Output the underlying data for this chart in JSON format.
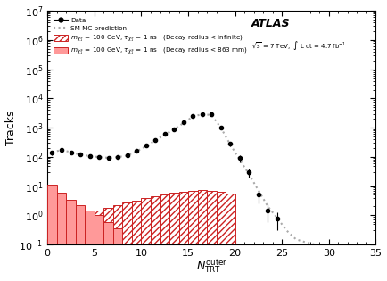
{
  "title_atlas": "ATLAS",
  "subtitle": "$\\sqrt{s}$ = 7 TeV,  $\\int$ L dt = 4.7 fb$^{-1}$",
  "xlabel": "$N_{\\mathrm{TRT}}^{\\mathrm{outer}}$",
  "ylabel": "Tracks",
  "xlim": [
    0,
    35
  ],
  "ylim": [
    0.1,
    10000000.0
  ],
  "data_x": [
    0,
    1,
    2,
    3,
    4,
    5,
    6,
    7,
    8,
    9,
    10,
    11,
    12,
    13,
    14,
    15,
    16,
    17,
    18,
    19,
    20,
    21,
    22,
    23,
    24
  ],
  "data_y": [
    140,
    170,
    140,
    120,
    110,
    100,
    95,
    100,
    115,
    160,
    240,
    380,
    600,
    900,
    1500,
    2500,
    3000,
    2800,
    1000,
    280,
    90,
    30,
    5,
    1.5,
    0.8
  ],
  "data_yerr_low": [
    25,
    22,
    18,
    15,
    13,
    12,
    10,
    12,
    15,
    20,
    30,
    40,
    55,
    80,
    100,
    150,
    170,
    160,
    100,
    50,
    25,
    10,
    2.5,
    0.9,
    0.5
  ],
  "data_yerr_high": [
    25,
    22,
    18,
    15,
    13,
    12,
    10,
    12,
    15,
    20,
    30,
    40,
    55,
    80,
    100,
    150,
    170,
    160,
    100,
    50,
    25,
    10,
    2.5,
    0.9,
    0.5
  ],
  "mc_x": [
    0,
    1,
    2,
    3,
    4,
    5,
    6,
    7,
    8,
    9,
    10,
    11,
    12,
    13,
    14,
    15,
    16,
    17,
    18,
    19,
    20,
    21,
    22,
    23,
    24,
    25,
    26,
    27,
    28
  ],
  "mc_y": [
    145,
    172,
    145,
    118,
    108,
    98,
    93,
    98,
    112,
    155,
    230,
    370,
    580,
    870,
    1450,
    2400,
    2900,
    2700,
    980,
    260,
    80,
    25,
    7,
    2,
    0.8,
    0.3,
    0.15,
    0.12,
    0.1
  ],
  "sig_inf_x": [
    4,
    5,
    6,
    7,
    8,
    9,
    10,
    11,
    12,
    13,
    14,
    15,
    16,
    17,
    18,
    19
  ],
  "sig_inf_y": [
    1.2,
    1.5,
    1.8,
    2.2,
    2.8,
    3.2,
    3.8,
    4.5,
    5.2,
    6.0,
    6.5,
    7.0,
    7.2,
    6.8,
    6.2,
    5.5
  ],
  "sig_863_x": [
    0,
    1,
    2,
    3,
    4,
    5,
    6,
    7
  ],
  "sig_863_y": [
    11,
    6.0,
    3.5,
    2.2,
    1.5,
    1.0,
    0.6,
    0.35
  ],
  "legend_label_data": "Data",
  "legend_label_mc": "SM MC prediction",
  "legend_label_inf": "$m_{\\tilde{\\chi}_{1}^{\\pm}}$ = 100 GeV, $\\tau_{\\tilde{\\chi}_{1}^{\\pm}}$ = 1 ns   (Decay radius < infinite)",
  "legend_label_863": "$m_{\\tilde{\\chi}_{1}^{\\pm}}$ = 100 GeV, $\\tau_{\\tilde{\\chi}_{1}^{\\pm}}$ = 1 ns   (Decay radius < 863 mm)",
  "color_data": "#000000",
  "color_mc": "#aaaaaa",
  "color_signal_edge": "#cc2222",
  "color_signal_fill": "#ff9999"
}
